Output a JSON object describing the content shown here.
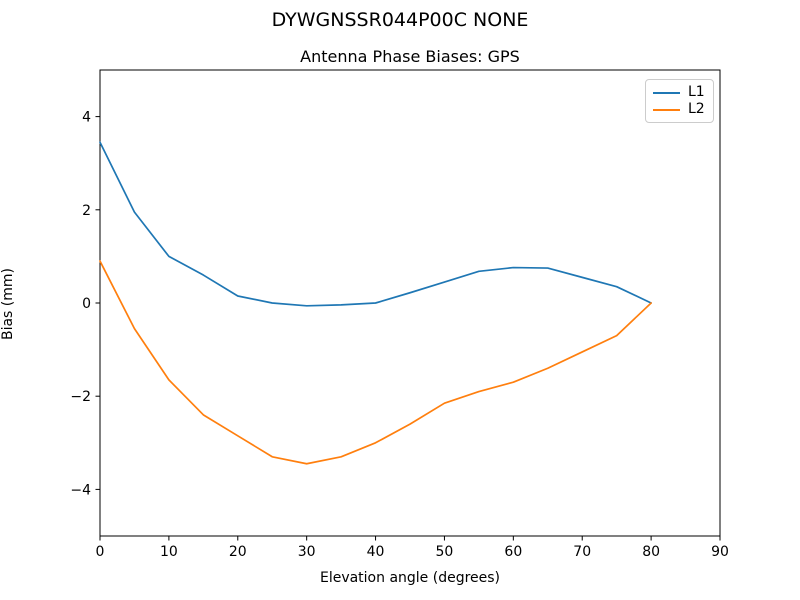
{
  "suptitle": "DYWGNSSR044P00C NONE",
  "chart_data": {
    "type": "line",
    "title": "Antenna Phase Biases: GPS",
    "xlabel": "Elevation angle (degrees)",
    "ylabel": "Bias (mm)",
    "xlim": [
      0,
      90
    ],
    "ylim": [
      -5,
      5
    ],
    "x_ticks": [
      0,
      10,
      20,
      30,
      40,
      50,
      60,
      70,
      80,
      90
    ],
    "y_ticks": [
      -4,
      -2,
      0,
      2,
      4
    ],
    "grid": false,
    "legend_position": "upper right",
    "axis_color": "#000000",
    "background_color": "#ffffff",
    "x": [
      0,
      5,
      10,
      15,
      20,
      25,
      30,
      35,
      40,
      45,
      50,
      55,
      60,
      65,
      70,
      75,
      80
    ],
    "series": [
      {
        "name": "L1",
        "color": "#1f77b4",
        "values": [
          3.45,
          1.95,
          1.0,
          0.6,
          0.15,
          0.0,
          -0.06,
          -0.04,
          0.0,
          0.22,
          0.45,
          0.68,
          0.76,
          0.75,
          0.55,
          0.35,
          0.0
        ]
      },
      {
        "name": "L2",
        "color": "#ff7f0e",
        "values": [
          0.9,
          -0.55,
          -1.65,
          -2.4,
          -2.85,
          -3.3,
          -3.45,
          -3.3,
          -3.0,
          -2.6,
          -2.15,
          -1.9,
          -1.7,
          -1.4,
          -1.05,
          -0.7,
          0.0
        ]
      }
    ]
  }
}
